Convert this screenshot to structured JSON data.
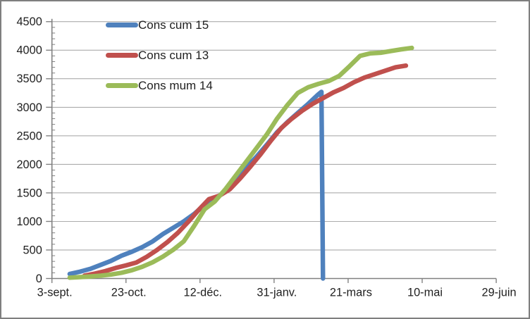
{
  "chart_data": {
    "type": "line",
    "title": "",
    "x_axis": {
      "label": "",
      "unit": "days-since-first-tick",
      "range_days": [
        0,
        300
      ],
      "tick_interval_days": 50,
      "tick_labels": [
        "3-sept.",
        "23-oct.",
        "12-déc.",
        "31-janv.",
        "21-mars",
        "10-mai",
        "29-juin"
      ]
    },
    "y_axis": {
      "label": "",
      "min": 0,
      "max": 4500,
      "major_step": 500,
      "minor_step": 100,
      "tick_labels": [
        "0",
        "500",
        "1000",
        "1500",
        "2000",
        "2500",
        "3000",
        "3500",
        "4000",
        "4500"
      ]
    },
    "grid": "horizontal-major",
    "legend_position": "top-left-inside",
    "series": [
      {
        "name": "Cons cum 15",
        "color": "#4F81BD",
        "points": [
          [
            12,
            80
          ],
          [
            19,
            120
          ],
          [
            26,
            170
          ],
          [
            33,
            240
          ],
          [
            40,
            310
          ],
          [
            47,
            400
          ],
          [
            54,
            470
          ],
          [
            61,
            550
          ],
          [
            68,
            650
          ],
          [
            75,
            780
          ],
          [
            82,
            890
          ],
          [
            89,
            1000
          ],
          [
            96,
            1130
          ],
          [
            103,
            1290
          ],
          [
            110,
            1400
          ],
          [
            117,
            1520
          ],
          [
            124,
            1710
          ],
          [
            131,
            1940
          ],
          [
            138,
            2130
          ],
          [
            145,
            2340
          ],
          [
            152,
            2560
          ],
          [
            159,
            2740
          ],
          [
            166,
            2900
          ],
          [
            173,
            3060
          ],
          [
            180,
            3230
          ],
          [
            182,
            3270
          ],
          [
            183,
            0
          ]
        ]
      },
      {
        "name": "Cons cum 13",
        "color": "#C0504D",
        "points": [
          [
            22,
            50
          ],
          [
            29,
            85
          ],
          [
            36,
            130
          ],
          [
            43,
            185
          ],
          [
            50,
            230
          ],
          [
            57,
            280
          ],
          [
            64,
            380
          ],
          [
            71,
            500
          ],
          [
            78,
            640
          ],
          [
            85,
            800
          ],
          [
            92,
            990
          ],
          [
            99,
            1200
          ],
          [
            106,
            1390
          ],
          [
            113,
            1450
          ],
          [
            120,
            1560
          ],
          [
            127,
            1750
          ],
          [
            134,
            1960
          ],
          [
            141,
            2180
          ],
          [
            148,
            2420
          ],
          [
            155,
            2640
          ],
          [
            162,
            2800
          ],
          [
            169,
            2940
          ],
          [
            176,
            3060
          ],
          [
            183,
            3160
          ],
          [
            190,
            3260
          ],
          [
            197,
            3340
          ],
          [
            204,
            3440
          ],
          [
            211,
            3520
          ],
          [
            218,
            3580
          ],
          [
            225,
            3640
          ],
          [
            232,
            3700
          ],
          [
            239,
            3730
          ]
        ]
      },
      {
        "name": "Cons mum 14",
        "color": "#9BBB59",
        "points": [
          [
            12,
            15
          ],
          [
            19,
            25
          ],
          [
            26,
            35
          ],
          [
            33,
            50
          ],
          [
            40,
            70
          ],
          [
            47,
            100
          ],
          [
            54,
            145
          ],
          [
            61,
            205
          ],
          [
            68,
            285
          ],
          [
            75,
            385
          ],
          [
            82,
            505
          ],
          [
            89,
            650
          ],
          [
            96,
            920
          ],
          [
            103,
            1210
          ],
          [
            110,
            1350
          ],
          [
            117,
            1560
          ],
          [
            124,
            1800
          ],
          [
            131,
            2040
          ],
          [
            138,
            2280
          ],
          [
            145,
            2520
          ],
          [
            152,
            2800
          ],
          [
            159,
            3040
          ],
          [
            166,
            3250
          ],
          [
            173,
            3350
          ],
          [
            180,
            3410
          ],
          [
            187,
            3460
          ],
          [
            194,
            3550
          ],
          [
            201,
            3720
          ],
          [
            208,
            3900
          ],
          [
            215,
            3945
          ],
          [
            222,
            3955
          ],
          [
            229,
            3985
          ],
          [
            236,
            4015
          ],
          [
            243,
            4040
          ]
        ]
      }
    ]
  },
  "colors": {
    "background": "#FFFFFF",
    "border": "#7F7F7F",
    "gridline": "#A0A0A0",
    "axis": "#808080",
    "text": "#1F1F1F"
  }
}
